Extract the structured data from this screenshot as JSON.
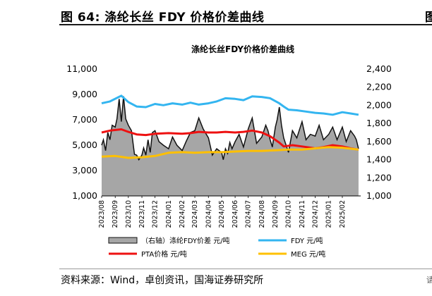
{
  "figure": {
    "caption": "图 64:  涤纶长丝 FDY 价格价差曲线",
    "source": "资料来源：Wind，卓创资讯，国海证券研究所",
    "edge_glyph": "图",
    "edge_mark": "请"
  },
  "chart_data": {
    "type": "line",
    "title": "涤纶长丝FDY价格价差曲线",
    "colors": {
      "spread": "#a6a6a6",
      "fdy": "#33b5f0",
      "pta": "#ee1111",
      "meg": "#ffc000"
    },
    "y_left": {
      "lim": [
        1000,
        11000
      ],
      "ticks": [
        "1,000",
        "3,000",
        "5,000",
        "7,000",
        "9,000",
        "11,000"
      ]
    },
    "y_right": {
      "lim": [
        1000,
        2400
      ],
      "ticks": [
        "1,000",
        "1,200",
        "1,400",
        "1,600",
        "1,800",
        "2,000",
        "2,200",
        "2,400"
      ]
    },
    "x_ticks": [
      "2023/08",
      "2023/09",
      "2023/10",
      "2023/11",
      "2023/12",
      "2024/01",
      "2024/02",
      "2024/03",
      "2024/04",
      "2024/05",
      "2024/06",
      "2024/07",
      "2024/08",
      "2024/09",
      "2024/10",
      "2024/11",
      "2024/12",
      "2025/01",
      "2025/02"
    ],
    "legend": [
      {
        "key": "spread",
        "label": "（右轴）涤纶FDY价差  元/吨",
        "kind": "area"
      },
      {
        "key": "fdy",
        "label": "FDY  元/吨",
        "kind": "line"
      },
      {
        "key": "pta",
        "label": "PTA价格  元/吨",
        "kind": "line"
      },
      {
        "key": "meg",
        "label": "MEG  元/吨",
        "kind": "line"
      }
    ],
    "series": [
      {
        "key": "spread",
        "axis": "right",
        "x": [
          "2023-08-01",
          "2023-08-05",
          "2023-08-10",
          "2023-08-15",
          "2023-08-20",
          "2023-08-25",
          "2023-09-01",
          "2023-09-05",
          "2023-09-10",
          "2023-09-15",
          "2023-09-20",
          "2023-09-25",
          "2023-10-01",
          "2023-10-08",
          "2023-10-15",
          "2023-10-20",
          "2023-10-25",
          "2023-11-01",
          "2023-11-05",
          "2023-11-10",
          "2023-11-15",
          "2023-11-20",
          "2023-11-25",
          "2023-12-01",
          "2023-12-10",
          "2023-12-20",
          "2024-01-01",
          "2024-01-10",
          "2024-01-20",
          "2024-02-01",
          "2024-02-10",
          "2024-02-20",
          "2024-03-01",
          "2024-03-10",
          "2024-03-20",
          "2024-04-01",
          "2024-04-10",
          "2024-04-20",
          "2024-05-01",
          "2024-05-05",
          "2024-05-10",
          "2024-05-15",
          "2024-05-20",
          "2024-05-25",
          "2024-06-01",
          "2024-06-10",
          "2024-06-20",
          "2024-07-01",
          "2024-07-10",
          "2024-07-20",
          "2024-08-01",
          "2024-08-10",
          "2024-08-15",
          "2024-08-20",
          "2024-08-25",
          "2024-09-01",
          "2024-09-05",
          "2024-09-10",
          "2024-09-15",
          "2024-09-20",
          "2024-10-01",
          "2024-10-10",
          "2024-10-20",
          "2024-11-01",
          "2024-11-10",
          "2024-11-20",
          "2024-12-01",
          "2024-12-10",
          "2024-12-20",
          "2025-01-01",
          "2025-01-10",
          "2025-01-20",
          "2025-02-01",
          "2025-02-10",
          "2025-02-20",
          "2025-03-01",
          "2025-03-05",
          "2025-03-10"
        ],
        "y": [
          1560,
          1620,
          1500,
          1700,
          1620,
          1780,
          1760,
          1850,
          2070,
          1820,
          2100,
          1850,
          1780,
          1720,
          1460,
          1450,
          1400,
          1450,
          1530,
          1450,
          1620,
          1480,
          1700,
          1720,
          1600,
          1560,
          1520,
          1650,
          1560,
          1500,
          1600,
          1700,
          1720,
          1860,
          1740,
          1640,
          1450,
          1520,
          1480,
          1400,
          1520,
          1470,
          1590,
          1520,
          1600,
          1680,
          1540,
          1740,
          1860,
          1580,
          1650,
          1780,
          1720,
          1620,
          1540,
          1760,
          1840,
          1980,
          1780,
          1640,
          1480,
          1720,
          1640,
          1820,
          1620,
          1680,
          1660,
          1780,
          1620,
          1680,
          1760,
          1620,
          1760,
          1600,
          1720,
          1660,
          1620,
          1520
        ]
      },
      {
        "key": "fdy",
        "axis": "left",
        "x": [
          "2023-08-01",
          "2023-08-20",
          "2023-09-15",
          "2023-10-01",
          "2023-10-20",
          "2023-11-10",
          "2023-12-01",
          "2023-12-20",
          "2024-01-10",
          "2024-02-01",
          "2024-02-20",
          "2024-03-10",
          "2024-04-01",
          "2024-04-20",
          "2024-05-10",
          "2024-06-01",
          "2024-06-20",
          "2024-07-10",
          "2024-08-01",
          "2024-08-20",
          "2024-09-10",
          "2024-09-20",
          "2024-10-01",
          "2024-10-20",
          "2024-11-10",
          "2024-12-01",
          "2024-12-20",
          "2025-01-10",
          "2025-02-01",
          "2025-02-20",
          "2025-03-10"
        ],
        "y": [
          8300,
          8450,
          8900,
          8400,
          8050,
          8000,
          8250,
          8150,
          8300,
          8200,
          8350,
          8200,
          8300,
          8450,
          8700,
          8650,
          8550,
          8850,
          8800,
          8700,
          8300,
          8050,
          7800,
          7750,
          7650,
          7550,
          7500,
          7400,
          7600,
          7500,
          7400
        ]
      },
      {
        "key": "pta",
        "axis": "left",
        "x": [
          "2023-08-01",
          "2023-08-20",
          "2023-09-15",
          "2023-10-01",
          "2023-10-20",
          "2023-11-10",
          "2023-12-01",
          "2024-01-01",
          "2024-02-01",
          "2024-02-20",
          "2024-03-10",
          "2024-04-01",
          "2024-04-20",
          "2024-05-10",
          "2024-06-01",
          "2024-06-20",
          "2024-07-10",
          "2024-08-01",
          "2024-08-20",
          "2024-09-10",
          "2024-09-20",
          "2024-10-10",
          "2024-11-01",
          "2024-12-01",
          "2024-12-20",
          "2025-01-10",
          "2025-02-01",
          "2025-02-20",
          "2025-03-10"
        ],
        "y": [
          6000,
          6150,
          6250,
          6050,
          5850,
          5800,
          5900,
          5950,
          5900,
          5950,
          6050,
          6000,
          6000,
          6050,
          6000,
          6050,
          6150,
          6000,
          5700,
          5200,
          4900,
          5000,
          4900,
          4750,
          4850,
          5000,
          4900,
          4750,
          4650
        ]
      },
      {
        "key": "meg",
        "axis": "left",
        "x": [
          "2023-08-01",
          "2023-09-01",
          "2023-10-01",
          "2023-11-01",
          "2023-12-01",
          "2024-01-01",
          "2024-02-01",
          "2024-03-01",
          "2024-04-01",
          "2024-05-01",
          "2024-06-01",
          "2024-07-01",
          "2024-08-01",
          "2024-09-01",
          "2024-10-01",
          "2024-11-01",
          "2024-12-01",
          "2025-01-01",
          "2025-02-01",
          "2025-03-10"
        ],
        "y": [
          4100,
          4150,
          4000,
          4050,
          4150,
          4400,
          4450,
          4400,
          4450,
          4450,
          4500,
          4550,
          4550,
          4600,
          4650,
          4650,
          4750,
          4850,
          4800,
          4650
        ]
      }
    ]
  }
}
